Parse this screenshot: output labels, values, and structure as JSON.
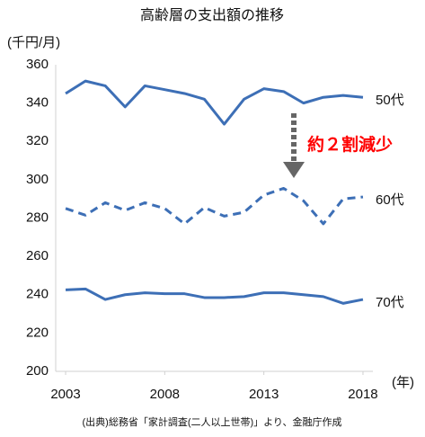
{
  "chart_data": {
    "type": "line",
    "title": "高齢層の支出額の推移",
    "y_label": "(千円/月)",
    "x_label": "(年)",
    "source": "(出典)総務省「家計調査(二人以上世帯)」より、金融庁作成",
    "annotation": "約２割減少",
    "annotation_color": "#ff0000",
    "x": [
      2003,
      2004,
      2005,
      2006,
      2007,
      2008,
      2009,
      2010,
      2011,
      2012,
      2013,
      2014,
      2015,
      2016,
      2017,
      2018
    ],
    "xlim": [
      2002.5,
      2018.5
    ],
    "xticks": [
      2003,
      2008,
      2013,
      2018
    ],
    "ylim": [
      200,
      360
    ],
    "yticks": [
      200,
      220,
      240,
      260,
      280,
      300,
      320,
      340,
      360
    ],
    "grid": false,
    "series": [
      {
        "name": "50代",
        "color": "#3d6fb6",
        "dashed": false,
        "values": [
          345,
          351.5,
          349,
          338,
          349,
          347,
          345,
          342,
          329,
          342,
          347.5,
          346,
          340,
          343,
          344,
          343
        ]
      },
      {
        "name": "60代",
        "color": "#3d6fb6",
        "dashed": true,
        "values": [
          285,
          281.5,
          288,
          284,
          288,
          285,
          277,
          285.5,
          281,
          283,
          292,
          295.5,
          289,
          277,
          290,
          291
        ]
      },
      {
        "name": "70代",
        "color": "#3d6fb6",
        "dashed": false,
        "values": [
          242.5,
          243,
          237.5,
          240,
          241,
          240.5,
          240.5,
          238.5,
          238.5,
          239,
          241,
          241,
          240,
          239,
          235.5,
          237.5
        ]
      }
    ]
  }
}
